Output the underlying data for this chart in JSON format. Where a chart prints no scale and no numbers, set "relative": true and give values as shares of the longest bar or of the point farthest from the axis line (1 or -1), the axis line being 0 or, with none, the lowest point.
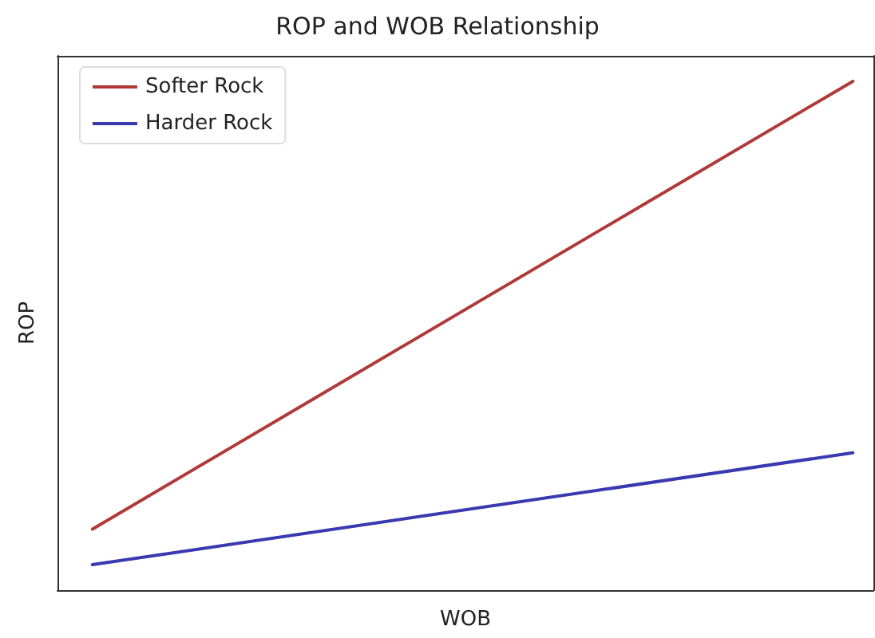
{
  "chart_data": {
    "type": "line",
    "title": "ROP and WOB Relationship",
    "xlabel": "WOB",
    "ylabel": "ROP",
    "relative": true,
    "categories": [
      null,
      null
    ],
    "series": [
      {
        "name": "Softer Rock",
        "color": "#b03a3a",
        "values": [
          0.12,
          1
        ]
      },
      {
        "name": "Harder Rock",
        "color": "#3a3ab0",
        "values": [
          0.05,
          0.27
        ]
      }
    ],
    "legend": "top left",
    "grid": false,
    "marker": "none",
    "line_style": "solid"
  }
}
